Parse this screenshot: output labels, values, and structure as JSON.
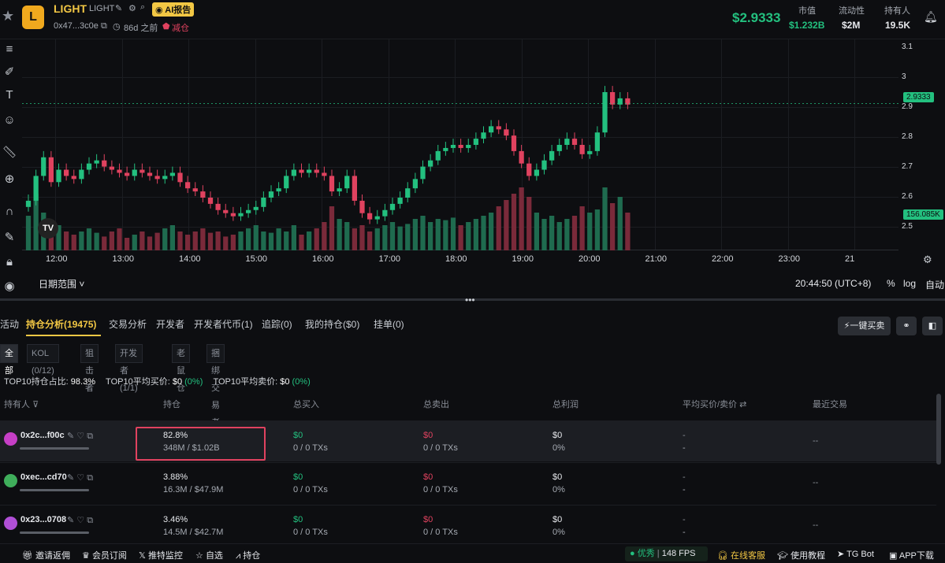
{
  "header": {
    "symbol": "LIGHT",
    "name": "LIGHT",
    "ai_badge": "AI报告",
    "address": "0x47...3c0e",
    "age": "86d 之前",
    "reduce_label": "减仓",
    "price": "$2.9333",
    "stats": [
      {
        "label": "市值",
        "value": "$1.232B"
      },
      {
        "label": "流动性",
        "value": "$2M"
      },
      {
        "label": "持有人",
        "value": "19.5K"
      }
    ]
  },
  "chart_data": {
    "type": "candlestick",
    "x_ticks": [
      "12:00",
      "13:00",
      "14:00",
      "15:00",
      "16:00",
      "17:00",
      "18:00",
      "19:00",
      "20:00",
      "21:00",
      "22:00",
      "23:00",
      "21"
    ],
    "y_ticks": [
      "3.1",
      "3",
      "2.9",
      "2.8",
      "2.7",
      "2.6",
      "2.5"
    ],
    "ylim": [
      2.46,
      3.14
    ],
    "last_price": "2.9333",
    "volume_label": "156.085K",
    "close": [
      2.62,
      2.7,
      2.76,
      2.68,
      2.72,
      2.7,
      2.69,
      2.72,
      2.74,
      2.75,
      2.73,
      2.72,
      2.71,
      2.7,
      2.72,
      2.71,
      2.7,
      2.69,
      2.7,
      2.71,
      2.68,
      2.66,
      2.65,
      2.63,
      2.61,
      2.59,
      2.58,
      2.57,
      2.58,
      2.59,
      2.6,
      2.63,
      2.65,
      2.66,
      2.7,
      2.72,
      2.71,
      2.72,
      2.71,
      2.7,
      2.65,
      2.66,
      2.7,
      2.62,
      2.58,
      2.56,
      2.57,
      2.59,
      2.61,
      2.63,
      2.66,
      2.69,
      2.73,
      2.75,
      2.78,
      2.79,
      2.8,
      2.79,
      2.8,
      2.82,
      2.84,
      2.86,
      2.85,
      2.83,
      2.78,
      2.74,
      2.7,
      2.72,
      2.75,
      2.78,
      2.8,
      2.82,
      2.8,
      2.77,
      2.78,
      2.84,
      2.97,
      2.93,
      2.95,
      2.93
    ],
    "volume": [
      0.55,
      0.9,
      0.6,
      0.35,
      0.4,
      0.3,
      0.25,
      0.3,
      0.35,
      0.28,
      0.22,
      0.3,
      0.35,
      0.2,
      0.25,
      0.3,
      0.22,
      0.28,
      0.35,
      0.4,
      0.3,
      0.25,
      0.3,
      0.35,
      0.28,
      0.3,
      0.22,
      0.25,
      0.3,
      0.35,
      0.4,
      0.3,
      0.28,
      0.35,
      0.3,
      0.4,
      0.25,
      0.3,
      0.35,
      0.45,
      0.7,
      0.5,
      0.45,
      0.35,
      0.4,
      0.3,
      0.35,
      0.4,
      0.45,
      0.38,
      0.42,
      0.5,
      0.55,
      0.45,
      0.5,
      0.48,
      0.52,
      0.4,
      0.45,
      0.5,
      0.55,
      0.6,
      0.7,
      0.8,
      0.9,
      1.0,
      0.85,
      0.6,
      0.5,
      0.55,
      0.45,
      0.5,
      0.55,
      0.7,
      0.6,
      0.65,
      1.0,
      0.75,
      0.85,
      0.6
    ]
  },
  "chart_footer": {
    "date_range": "日期范围",
    "time": "20:44:50 (UTC+8)",
    "percent": "%",
    "log": "log",
    "auto": "自动"
  },
  "tabs": [
    "活动",
    "持仓分析(19475)",
    "交易分析",
    "开发者",
    "开发者代币(1)",
    "追踪(0)",
    "我的持仓($0)",
    "挂单(0)"
  ],
  "one_click": "一键买卖",
  "filters": [
    "全部",
    "KOL (0/12)",
    "狙击者",
    "开发者 (1/1)",
    "老鼠仓",
    "捆绑交易者"
  ],
  "summary": {
    "top10_share_label": "TOP10持仓占比:",
    "top10_share": "98.3%",
    "avg_buy_label": "TOP10平均买价:",
    "avg_buy": "$0",
    "avg_buy_pct": "(0%)",
    "avg_sell_label": "TOP10平均卖价:",
    "avg_sell": "$0",
    "avg_sell_pct": "(0%)"
  },
  "table": {
    "headers": [
      "持有人",
      "持仓",
      "总买入",
      "总卖出",
      "总利润",
      "平均买价/卖价",
      "最近交易"
    ],
    "rows": [
      {
        "rank": "1",
        "addr": "0x2c...f00c",
        "pct": "82.8%",
        "amount": "348M / $1.02B",
        "buy": "$0",
        "buy_tx": "0 / 0 TXs",
        "sell": "$0",
        "sell_tx": "0 / 0 TXs",
        "profit": "$0",
        "profit_pct": "0%",
        "avg1": "-",
        "avg2": "-",
        "last": "--"
      },
      {
        "rank": "2",
        "addr": "0xec...cd70",
        "pct": "3.88%",
        "amount": "16.3M / $47.9M",
        "buy": "$0",
        "buy_tx": "0 / 0 TXs",
        "sell": "$0",
        "sell_tx": "0 / 0 TXs",
        "profit": "$0",
        "profit_pct": "0%",
        "avg1": "-",
        "avg2": "-",
        "last": "--"
      },
      {
        "rank": "3",
        "addr": "0x23...0708",
        "pct": "3.46%",
        "amount": "14.5M / $42.7M",
        "buy": "$0",
        "buy_tx": "0 / 0 TXs",
        "sell": "$0",
        "sell_tx": "0 / 0 TXs",
        "profit": "$0",
        "profit_pct": "0%",
        "avg1": "-",
        "avg2": "-",
        "last": "--"
      }
    ]
  },
  "footer": {
    "invite": "邀请返佣",
    "vip": "会员订阅",
    "twitter": "推特监控",
    "watch": "自选",
    "position": "持仓",
    "quality": "优秀",
    "fps": "148 FPS",
    "support": "在线客服",
    "tutorial": "使用教程",
    "tgbot": "TG Bot",
    "app": "APP下载"
  },
  "colors": {
    "up": "#23c07f",
    "down": "#e0425f",
    "accent": "#f2c744"
  }
}
